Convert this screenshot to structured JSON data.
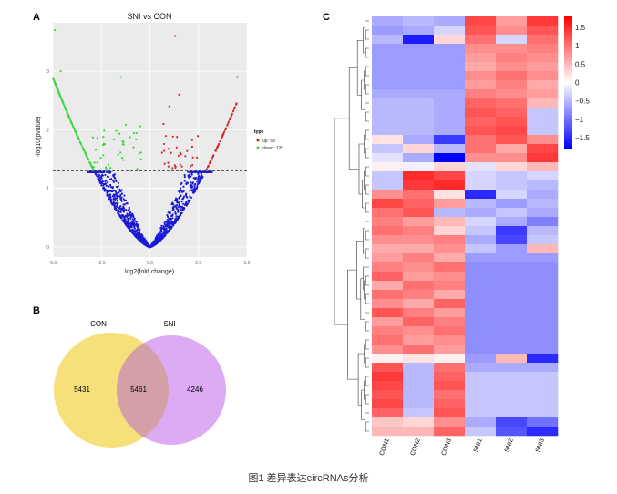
{
  "caption": "图1  差异表达circRNAs分析",
  "panel_labels": [
    "A",
    "B",
    "C"
  ],
  "chart_data": [
    {
      "type": "scatter",
      "panel": "A",
      "title": "SNI  vs  CON",
      "xlabel": "log2(fold change)",
      "ylabel": "-log10(pvalue)",
      "xlim": [
        -5,
        5
      ],
      "ylim": [
        0,
        3.8
      ],
      "x_ticks": [
        "-5.0",
        "-2.5",
        "0.0",
        "2.5",
        "5.0"
      ],
      "y_ticks": [
        "0",
        "1",
        "2",
        "3"
      ],
      "threshold_y": 1.3,
      "grid": true,
      "background": "#ebebeb",
      "legend": {
        "title": "type",
        "position": "right",
        "entries": [
          {
            "label": "up: 68",
            "color": "#d62728"
          },
          {
            "label": "down: 120",
            "color": "#39d839"
          }
        ]
      },
      "colors": {
        "up": "#d62728",
        "down": "#39d839",
        "ns": "#1a1ad6"
      },
      "counts": {
        "up": 68,
        "down": 120
      }
    },
    {
      "type": "venn",
      "panel": "B",
      "sets": [
        {
          "name": "CON",
          "only": 5431,
          "color": "#f7e07a"
        },
        {
          "name": "SNI",
          "only": 4246,
          "color": "#d79cf2"
        }
      ],
      "intersection": 5461
    },
    {
      "type": "heatmap",
      "panel": "C",
      "columns": [
        "CON1",
        "CON2",
        "CON3",
        "SNI1",
        "SNI2",
        "SNI3"
      ],
      "colorbar": {
        "range": [
          -1.8,
          1.8
        ],
        "ticks": [
          "1.5",
          "1",
          "0.5",
          "0",
          "−0.5",
          "−1",
          "−1.5"
        ],
        "low": "#0000ff",
        "mid": "#ffffff",
        "high": "#ff0000"
      },
      "values": [
        [
          -0.6,
          -0.5,
          -0.6,
          1.3,
          0.7,
          1.4
        ],
        [
          -0.7,
          -0.6,
          -0.3,
          1.2,
          0.8,
          1.2
        ],
        [
          -0.5,
          -1.6,
          0.3,
          1.0,
          -0.3,
          1.0
        ],
        [
          -0.7,
          -0.7,
          -0.7,
          0.8,
          0.8,
          0.9
        ],
        [
          -0.7,
          -0.7,
          -0.7,
          0.7,
          0.9,
          0.8
        ],
        [
          -0.7,
          -0.7,
          -0.7,
          0.6,
          0.8,
          0.7
        ],
        [
          -0.7,
          -0.7,
          -0.7,
          0.8,
          1.0,
          0.8
        ],
        [
          -0.7,
          -0.7,
          -0.7,
          0.7,
          0.9,
          0.6
        ],
        [
          -0.6,
          -0.6,
          -0.6,
          0.9,
          0.8,
          0.7
        ],
        [
          -0.5,
          -0.5,
          -0.6,
          1.1,
          1.0,
          0.5
        ],
        [
          -0.5,
          -0.5,
          -0.6,
          1.2,
          1.1,
          -0.4
        ],
        [
          -0.5,
          -0.5,
          -0.6,
          1.1,
          1.2,
          -0.4
        ],
        [
          -0.5,
          -0.5,
          -0.6,
          1.2,
          1.3,
          -0.4
        ],
        [
          0.2,
          -0.6,
          -1.4,
          1.0,
          1.2,
          0.8
        ],
        [
          -0.4,
          0.3,
          -0.5,
          1.0,
          0.6,
          1.3
        ],
        [
          -0.2,
          -0.6,
          -1.8,
          0.8,
          0.8,
          1.4
        ],
        [
          0.1,
          -0.1,
          0.3,
          -0.2,
          0.3,
          0.5
        ],
        [
          -0.4,
          1.5,
          1.3,
          -0.3,
          -0.4,
          -0.3
        ],
        [
          -0.4,
          1.4,
          1.5,
          -0.3,
          -0.4,
          -0.5
        ],
        [
          0.8,
          1.0,
          0.2,
          -1.5,
          -0.3,
          -0.6
        ],
        [
          1.3,
          1.1,
          0.7,
          -0.5,
          -0.7,
          -0.5
        ],
        [
          1.0,
          1.2,
          -0.5,
          -0.6,
          -0.4,
          -0.6
        ],
        [
          0.9,
          0.7,
          0.5,
          -0.3,
          -0.6,
          -0.9
        ],
        [
          1.0,
          0.9,
          0.3,
          -0.4,
          -1.4,
          -0.5
        ],
        [
          0.8,
          0.8,
          0.9,
          -0.6,
          -1.3,
          -0.4
        ],
        [
          0.6,
          0.6,
          0.8,
          -0.4,
          -0.7,
          0.5
        ],
        [
          0.7,
          0.9,
          0.6,
          -0.7,
          -0.7,
          -0.7
        ],
        [
          0.9,
          0.8,
          1.0,
          -0.8,
          -0.8,
          -0.8
        ],
        [
          1.1,
          0.7,
          0.8,
          -0.8,
          -0.8,
          -0.8
        ],
        [
          0.6,
          1.0,
          0.9,
          -0.8,
          -0.8,
          -0.8
        ],
        [
          1.0,
          0.9,
          0.6,
          -0.8,
          -0.8,
          -0.8
        ],
        [
          0.8,
          0.6,
          1.1,
          -0.8,
          -0.8,
          -0.8
        ],
        [
          1.2,
          0.9,
          0.7,
          -0.8,
          -0.8,
          -0.8
        ],
        [
          0.7,
          1.1,
          0.9,
          -0.8,
          -0.8,
          -0.8
        ],
        [
          0.9,
          0.8,
          1.0,
          -0.8,
          -0.8,
          -0.8
        ],
        [
          1.0,
          0.7,
          0.8,
          -0.8,
          -0.8,
          -0.8
        ],
        [
          0.8,
          1.0,
          0.7,
          -0.8,
          -0.8,
          -0.8
        ],
        [
          0.1,
          0.2,
          0.1,
          -0.7,
          0.5,
          -1.5
        ],
        [
          1.2,
          -0.5,
          1.0,
          -0.6,
          -0.6,
          -0.6
        ],
        [
          1.4,
          -0.5,
          1.1,
          -0.4,
          -0.4,
          -0.4
        ],
        [
          1.3,
          -0.5,
          1.2,
          -0.4,
          -0.4,
          -0.4
        ],
        [
          1.2,
          -0.5,
          1.0,
          -0.4,
          -0.4,
          -0.4
        ],
        [
          1.3,
          -0.5,
          1.1,
          -0.4,
          -0.4,
          -0.4
        ],
        [
          1.1,
          -0.4,
          1.2,
          -0.4,
          -0.4,
          -0.4
        ],
        [
          0.4,
          0.3,
          0.8,
          -0.6,
          -1.3,
          -1.0
        ],
        [
          0.5,
          0.5,
          1.1,
          -0.4,
          -1.2,
          -1.5
        ]
      ]
    }
  ]
}
